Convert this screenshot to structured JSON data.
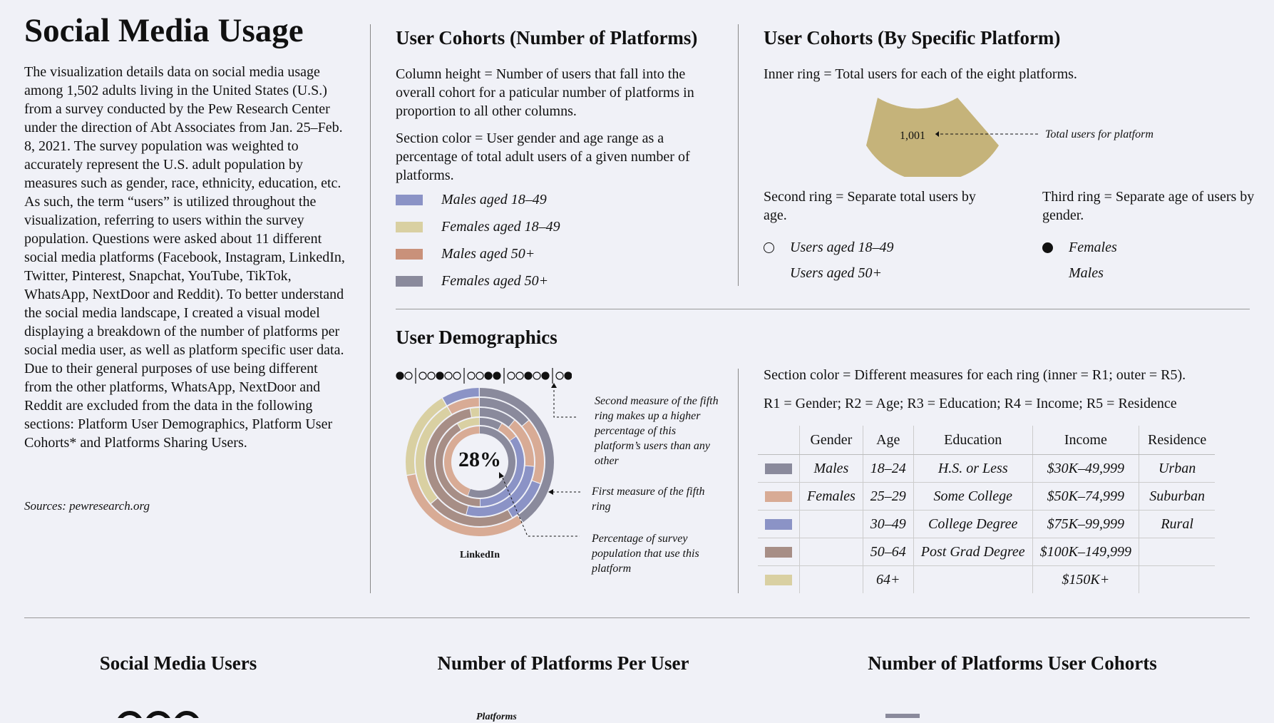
{
  "intro": {
    "title": "Social Media Usage",
    "body": "The visualization details data on social media usage among 1,502 adults living in the United States (U.S.) from a survey conducted by the Pew Research Center under the direction of Abt Associates from Jan. 25–Feb. 8, 2021. The survey population was weighted to accurately represent the U.S. adult population by measures such as gender, race, ethnicity, education, etc. As such, the term “users” is utilized throughout the visualization, referring to users within the survey population. Questions were asked about 11 different social media platforms (Facebook, Instagram, LinkedIn, Twitter, Pinterest, Snapchat, YouTube, TikTok, WhatsApp, NextDoor and Reddit). To better understand the social media landscape, I created a visual model displaying a breakdown of the number of platforms per social media user, as well as platform specific user data. Due to their general purposes of use being different from the other platforms, WhatsApp, NextDoor and Reddit are excluded from the data in the following sections: Platform User Demographics, Platform User Cohorts* and Platforms Sharing Users.",
    "sources": "Sources: pewresearch.org"
  },
  "cohorts_number": {
    "title": "User Cohorts (Number of Platforms)",
    "desc1": "Column height = Number of users that fall into the overall cohort for a paticular number of platforms in proportion to all other columns.",
    "desc2": "Section color = User gender and age range as a percentage of total adult users of a given number of platforms.",
    "legend": [
      {
        "label": "Males aged 18–49",
        "color": "#8b93c6"
      },
      {
        "label": "Females aged 18–49",
        "color": "#d9d0a2"
      },
      {
        "label": "Males aged 50+",
        "color": "#c9917a"
      },
      {
        "label": "Females aged 50+",
        "color": "#8a8a9c"
      }
    ]
  },
  "cohorts_platform": {
    "title": "User Cohorts (By Specific Platform)",
    "inner_ring": "Inner ring = Total users for each of the eight platforms.",
    "example_value": "1,001",
    "example_annotation": "Total users for platform",
    "second_ring": "Second ring = Separate total users by age.",
    "third_ring": "Third ring = Separate age of users by gender.",
    "age_legend": [
      "Users aged 18–49",
      "Users aged 50+"
    ],
    "gender_legend": [
      "Females",
      "Males"
    ],
    "wedge_color": "#c5b37a"
  },
  "demographics": {
    "title": "User Demographics",
    "center_value": "28%",
    "platform": "LinkedIn",
    "annotations": {
      "a1": "Second measure of the fifth ring makes up a higher percentage of this platform’s users than any other",
      "a2": "First measure of the fifth ring",
      "a3": "Percentage of survey population that use this platform"
    },
    "section_color": "Section color = Different measures for each ring (inner = R1; outer = R5).",
    "rings_key": "R1 = Gender; R2 = Age; R3 = Education; R4 = Income; R5 = Residence",
    "table": {
      "headers": [
        "Gender",
        "Age",
        "Education",
        "Income",
        "Residence"
      ],
      "rows": [
        {
          "color": "#8a8a9c",
          "cells": [
            "Males",
            "18–24",
            "H.S. or Less",
            "$30K–49,999",
            "Urban"
          ]
        },
        {
          "color": "#d8ab95",
          "cells": [
            "Females",
            "25–29",
            "Some College",
            "$50K–74,999",
            "Suburban"
          ]
        },
        {
          "color": "#8b93c6",
          "cells": [
            "",
            "30–49",
            "College Degree",
            "$75K–99,999",
            "Rural"
          ]
        },
        {
          "color": "#a78e86",
          "cells": [
            "",
            "50–64",
            "Post Grad Degree",
            "$100K–149,999",
            ""
          ]
        },
        {
          "color": "#d9d0a2",
          "cells": [
            "",
            "64+",
            "",
            "$150K+",
            ""
          ]
        }
      ]
    }
  },
  "bottom": {
    "t1": "Social Media Users",
    "t2": "Number of Platforms Per User",
    "t3": "Number of Platforms User Cohorts",
    "partial_text": "Platforms"
  }
}
